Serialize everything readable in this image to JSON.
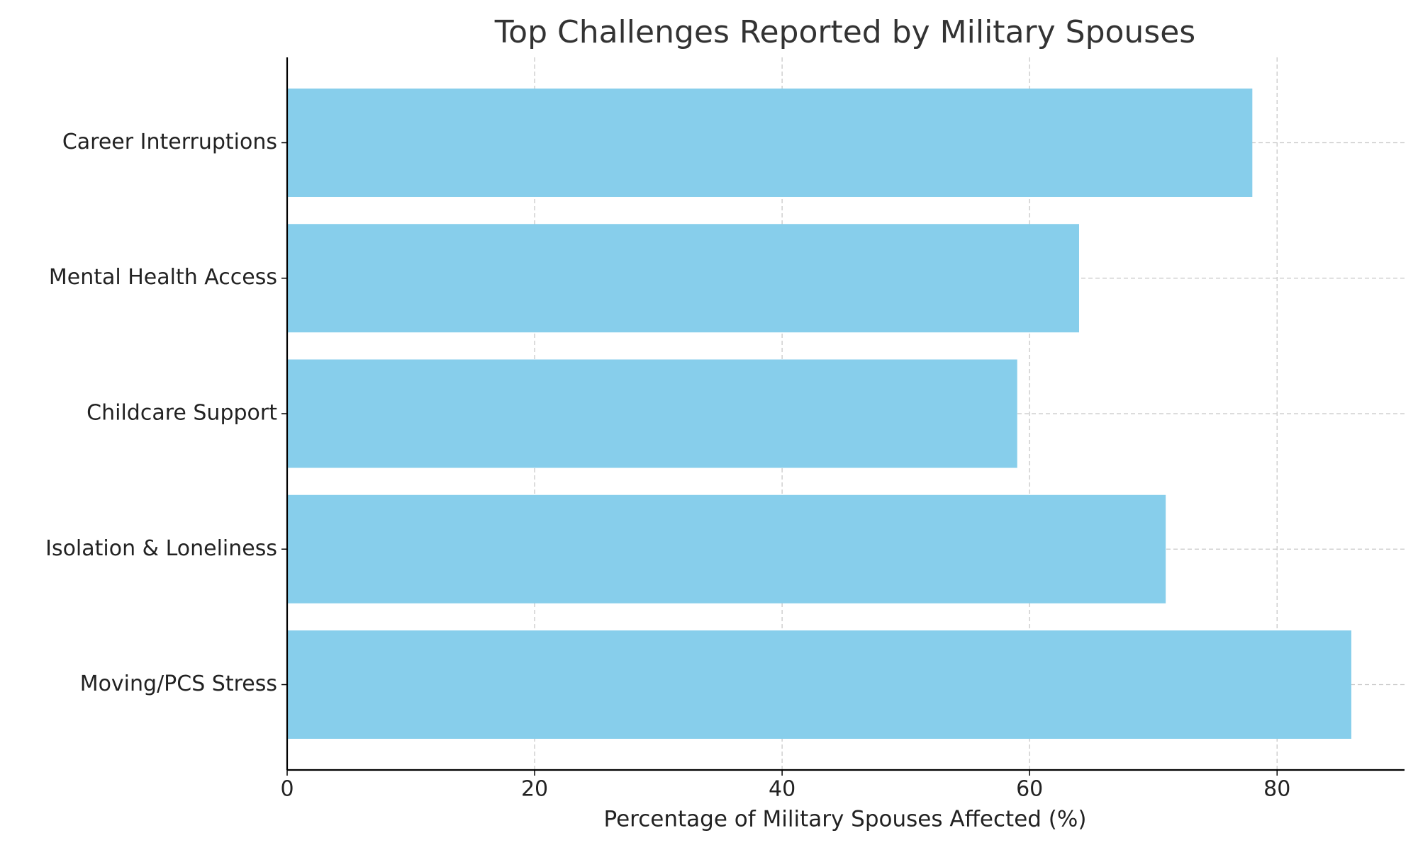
{
  "chart_data": {
    "type": "barh",
    "title": "Top Challenges Reported by Military Spouses",
    "xlabel": "Percentage of Military Spouses Affected (%)",
    "categories": [
      "Moving/PCS Stress",
      "Isolation & Loneliness",
      "Childcare Support",
      "Mental Health Access",
      "Career Interruptions"
    ],
    "values": [
      86,
      71,
      59,
      64,
      78
    ],
    "color": "#87ceeb",
    "xlim": [
      0,
      90.3
    ],
    "xticks": [
      0,
      20,
      40,
      60,
      80
    ],
    "grid": true
  }
}
